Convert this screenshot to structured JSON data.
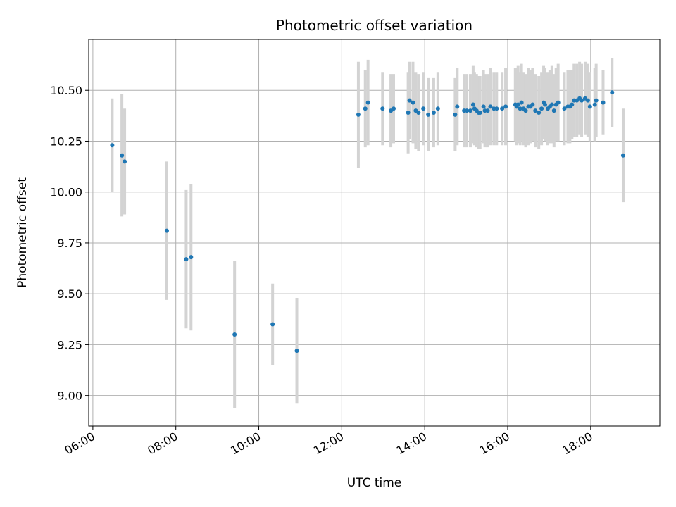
{
  "chart_data": {
    "type": "scatter",
    "title": "Photometric offset variation",
    "xlabel": "UTC time",
    "ylabel": "Photometric offset",
    "x_ticks": [
      "06:00",
      "08:00",
      "10:00",
      "12:00",
      "14:00",
      "16:00",
      "18:00"
    ],
    "y_ticks": [
      "9.00",
      "9.25",
      "9.50",
      "9.75",
      "10.00",
      "10.25",
      "10.50"
    ],
    "xlim": [
      "05:54",
      "19:40"
    ],
    "ylim": [
      8.85,
      10.75
    ],
    "grid": true,
    "point_color": "#1f77b4",
    "errorbar_color": "#d3d3d3",
    "series": [
      {
        "x": [
          "06:28",
          "06:42",
          "06:46",
          "07:47",
          "08:15",
          "08:22",
          "09:25",
          "10:20",
          "10:55",
          "12:24",
          "12:34",
          "12:38",
          "12:59",
          "13:11",
          "13:15",
          "13:36",
          "13:38",
          "13:43",
          "13:47",
          "13:51",
          "13:58",
          "14:05",
          "14:13",
          "14:19",
          "14:44",
          "14:47",
          "14:57",
          "15:01",
          "15:06",
          "15:10",
          "15:12",
          "15:15",
          "15:18",
          "15:20",
          "15:25",
          "15:27",
          "15:31",
          "15:35",
          "15:40",
          "15:44",
          "15:52",
          "15:57",
          "16:11",
          "16:13",
          "16:15",
          "16:18",
          "16:20",
          "16:23",
          "16:26",
          "16:30",
          "16:33",
          "16:36",
          "16:40",
          "16:45",
          "16:49",
          "16:52",
          "16:54",
          "16:58",
          "17:01",
          "17:04",
          "17:07",
          "17:10",
          "17:13",
          "17:22",
          "17:27",
          "17:30",
          "17:33",
          "17:36",
          "17:40",
          "17:44",
          "17:47",
          "17:52",
          "17:56",
          "17:59",
          "18:06",
          "18:08",
          "18:18",
          "18:31",
          "18:47"
        ],
        "y": [
          10.23,
          10.18,
          10.15,
          9.81,
          9.67,
          9.68,
          9.3,
          9.35,
          9.22,
          10.38,
          10.41,
          10.44,
          10.41,
          10.4,
          10.41,
          10.39,
          10.45,
          10.44,
          10.4,
          10.39,
          10.41,
          10.38,
          10.39,
          10.41,
          10.38,
          10.42,
          10.4,
          10.4,
          10.4,
          10.43,
          10.41,
          10.4,
          10.39,
          10.39,
          10.42,
          10.4,
          10.4,
          10.42,
          10.41,
          10.41,
          10.41,
          10.42,
          10.43,
          10.42,
          10.43,
          10.41,
          10.44,
          10.41,
          10.4,
          10.42,
          10.42,
          10.43,
          10.4,
          10.39,
          10.41,
          10.44,
          10.43,
          10.41,
          10.42,
          10.43,
          10.4,
          10.43,
          10.44,
          10.41,
          10.42,
          10.42,
          10.43,
          10.45,
          10.45,
          10.46,
          10.45,
          10.46,
          10.45,
          10.42,
          10.43,
          10.45,
          10.44,
          10.49,
          10.18
        ],
        "err": [
          0.23,
          0.3,
          0.26,
          0.34,
          0.34,
          0.36,
          0.36,
          0.2,
          0.26,
          0.26,
          0.19,
          0.21,
          0.18,
          0.18,
          0.17,
          0.2,
          0.19,
          0.2,
          0.19,
          0.19,
          0.18,
          0.18,
          0.17,
          0.18,
          0.18,
          0.19,
          0.18,
          0.18,
          0.18,
          0.19,
          0.18,
          0.18,
          0.18,
          0.18,
          0.18,
          0.18,
          0.18,
          0.19,
          0.18,
          0.18,
          0.18,
          0.19,
          0.18,
          0.19,
          0.19,
          0.18,
          0.19,
          0.18,
          0.18,
          0.19,
          0.18,
          0.18,
          0.18,
          0.18,
          0.18,
          0.18,
          0.18,
          0.18,
          0.18,
          0.19,
          0.18,
          0.18,
          0.19,
          0.18,
          0.18,
          0.18,
          0.17,
          0.18,
          0.18,
          0.18,
          0.18,
          0.18,
          0.18,
          0.17,
          0.18,
          0.18,
          0.16,
          0.17,
          0.23
        ]
      }
    ]
  }
}
